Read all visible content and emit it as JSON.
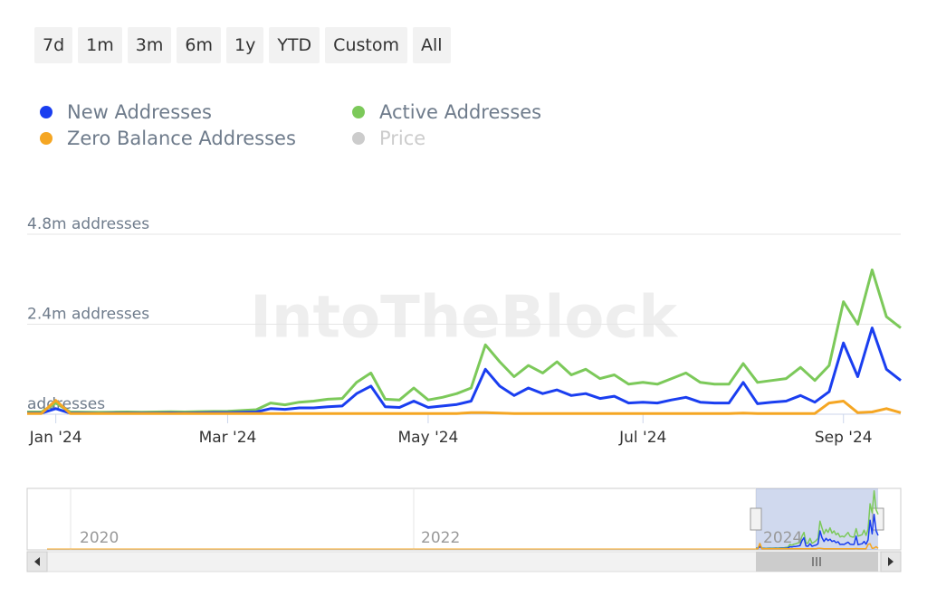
{
  "chart_data": {
    "type": "line",
    "range_buttons": [
      "7d",
      "1m",
      "3m",
      "6m",
      "1y",
      "YTD",
      "Custom",
      "All"
    ],
    "watermark": "IntoTheBlock",
    "categories": [
      null,
      null,
      "Jan '24",
      null,
      null,
      null,
      null,
      null,
      null,
      null,
      null,
      null,
      null,
      null,
      "Mar '24",
      null,
      null,
      null,
      null,
      null,
      null,
      null,
      null,
      null,
      null,
      null,
      null,
      null,
      "May '24",
      null,
      null,
      null,
      null,
      null,
      null,
      null,
      null,
      null,
      null,
      null,
      null,
      null,
      null,
      "Jul '24",
      null,
      null,
      null,
      null,
      null,
      null,
      null,
      null,
      null,
      null,
      null,
      null,
      null,
      "Sep '24",
      null,
      null,
      null,
      null
    ],
    "series": [
      {
        "name": "New Addresses",
        "color": "#1a3ef0",
        "values": [
          30000,
          30000,
          150000,
          30000,
          30000,
          25000,
          30000,
          30000,
          30000,
          30000,
          35000,
          30000,
          35000,
          40000,
          40000,
          50000,
          60000,
          150000,
          130000,
          170000,
          170000,
          200000,
          220000,
          550000,
          750000,
          200000,
          180000,
          350000,
          180000,
          220000,
          260000,
          350000,
          1200000,
          750000,
          500000,
          700000,
          550000,
          650000,
          500000,
          550000,
          420000,
          480000,
          300000,
          320000,
          300000,
          380000,
          450000,
          320000,
          300000,
          300000,
          850000,
          280000,
          320000,
          350000,
          500000,
          320000,
          600000,
          1900000,
          1000000,
          2300000,
          1200000,
          900000
        ]
      },
      {
        "name": "Active Addresses",
        "color": "#7cc95a",
        "values": [
          60000,
          60000,
          300000,
          60000,
          55000,
          50000,
          55000,
          60000,
          55000,
          60000,
          65000,
          60000,
          70000,
          75000,
          80000,
          100000,
          120000,
          300000,
          250000,
          320000,
          350000,
          400000,
          420000,
          850000,
          1100000,
          400000,
          380000,
          700000,
          380000,
          450000,
          550000,
          700000,
          1850000,
          1400000,
          1000000,
          1300000,
          1100000,
          1400000,
          1050000,
          1200000,
          950000,
          1050000,
          800000,
          850000,
          800000,
          950000,
          1100000,
          850000,
          800000,
          800000,
          1350000,
          850000,
          900000,
          950000,
          1250000,
          900000,
          1300000,
          3000000,
          2400000,
          3850000,
          2600000,
          2300000
        ]
      },
      {
        "name": "Zero Balance Addresses",
        "color": "#f5a623",
        "values": [
          20000,
          20000,
          370000,
          20000,
          20000,
          20000,
          20000,
          20000,
          20000,
          20000,
          20000,
          20000,
          20000,
          20000,
          20000,
          20000,
          20000,
          20000,
          20000,
          20000,
          20000,
          20000,
          20000,
          20000,
          20000,
          20000,
          20000,
          20000,
          20000,
          20000,
          20000,
          40000,
          40000,
          30000,
          20000,
          20000,
          20000,
          20000,
          20000,
          20000,
          20000,
          20000,
          20000,
          20000,
          20000,
          20000,
          20000,
          20000,
          20000,
          20000,
          30000,
          20000,
          20000,
          20000,
          20000,
          20000,
          300000,
          350000,
          40000,
          60000,
          150000,
          40000
        ]
      }
    ],
    "inactive_legend": [
      "Price"
    ],
    "ylim": [
      0,
      4800000
    ],
    "yticks": [
      {
        "value": 0,
        "label": "addresses"
      },
      {
        "value": 2400000,
        "label": "2.4m addresses"
      },
      {
        "value": 4800000,
        "label": "4.8m addresses"
      }
    ],
    "grid": true,
    "navigator": {
      "labels": [
        "2020",
        "2022",
        "2024"
      ]
    }
  }
}
